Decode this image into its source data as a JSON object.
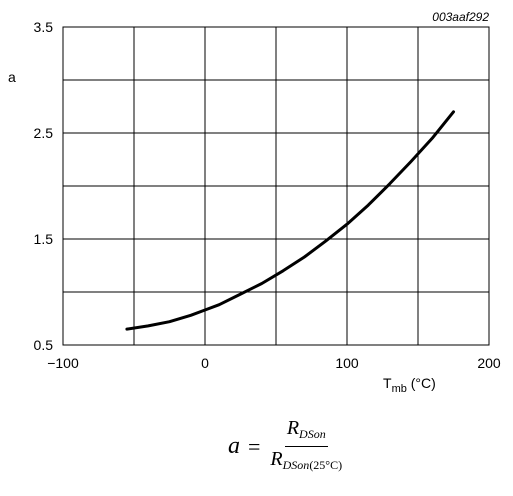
{
  "chart_data": {
    "type": "line",
    "figure_code": "003aaf292",
    "ylabel": "a",
    "xlabel_main": "T",
    "xlabel_sub": "mb",
    "xlabel_unit": " (°C)",
    "xlim": [
      -100,
      200
    ],
    "ylim": [
      0.5,
      3.5
    ],
    "x_ticks": [
      -100,
      0,
      100,
      200
    ],
    "x_tick_labels": [
      "−100",
      "0",
      "100",
      "200"
    ],
    "y_ticks": [
      0.5,
      1.5,
      2.5,
      3.5
    ],
    "y_tick_labels": [
      "0.5",
      "1.5",
      "2.5",
      "3.5"
    ],
    "x_grid": [
      -100,
      -50,
      0,
      50,
      100,
      150,
      200
    ],
    "y_grid": [
      0.5,
      1.0,
      1.5,
      2.0,
      2.5,
      3.0,
      3.5
    ],
    "grid": true,
    "series": [
      {
        "x": [
          -55,
          -40,
          -25,
          -10,
          0,
          10,
          25,
          40,
          55,
          70,
          85,
          100,
          115,
          130,
          145,
          160,
          175
        ],
        "y": [
          0.65,
          0.68,
          0.72,
          0.78,
          0.83,
          0.88,
          0.98,
          1.08,
          1.2,
          1.33,
          1.48,
          1.64,
          1.82,
          2.02,
          2.23,
          2.45,
          2.7
        ],
        "color": "#000000"
      }
    ]
  },
  "formula": {
    "lhs": "a",
    "equals": "=",
    "num_main": "R",
    "num_sub": "DSon",
    "den_main": "R",
    "den_sub": "DSon",
    "den_sub_paren": "(25°C)"
  }
}
